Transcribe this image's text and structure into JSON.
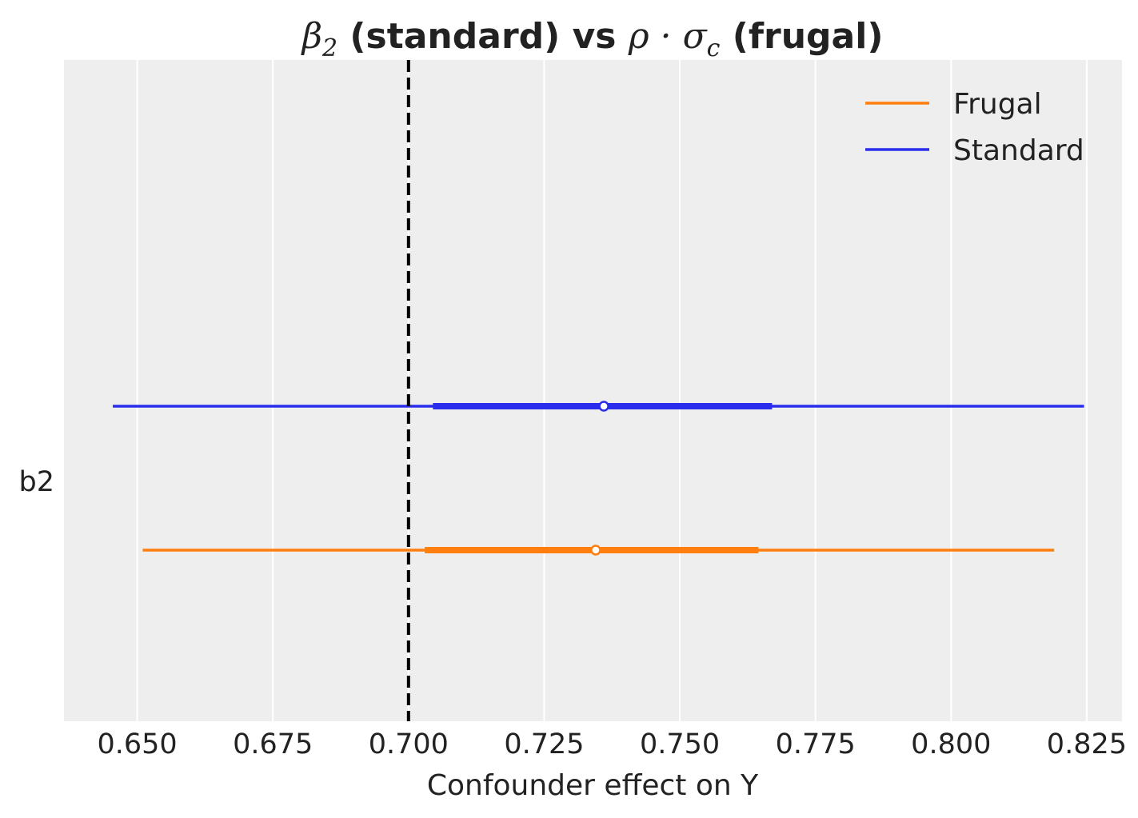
{
  "chart_data": {
    "type": "forest",
    "title": {
      "parts": [
        {
          "text": "β",
          "style": "math"
        },
        {
          "text": "2",
          "style": "math-sub"
        },
        {
          "text": " (standard) vs ",
          "style": "bold"
        },
        {
          "text": "ρ · σ",
          "style": "math"
        },
        {
          "text": "c",
          "style": "math-sub"
        },
        {
          "text": " (frugal)",
          "style": "bold"
        }
      ]
    },
    "xlabel": "Confounder effect on Y",
    "xlim": [
      0.6365,
      0.8315
    ],
    "xticks": [
      0.65,
      0.675,
      0.7,
      0.725,
      0.75,
      0.775,
      0.8,
      0.825
    ],
    "xtick_labels": [
      "0.650",
      "0.675",
      "0.700",
      "0.725",
      "0.750",
      "0.775",
      "0.800",
      "0.825"
    ],
    "ylabel_param": "b2",
    "grid": "x",
    "reference_line": {
      "x": 0.7,
      "style": "dashed",
      "color": "#000000"
    },
    "legend": {
      "position": "top-right",
      "entries": [
        {
          "name": "Frugal",
          "color": "#ff7f0e"
        },
        {
          "name": "Standard",
          "color": "#2a2eec"
        }
      ]
    },
    "series": [
      {
        "name": "Standard",
        "color": "#2a2eec",
        "hdi_outer": [
          0.6455,
          0.8245
        ],
        "hdi_inner": [
          0.7045,
          0.767
        ],
        "point": 0.736
      },
      {
        "name": "Frugal",
        "color": "#ff7f0e",
        "hdi_outer": [
          0.651,
          0.819
        ],
        "hdi_inner": [
          0.703,
          0.7645
        ],
        "point": 0.7345
      }
    ]
  }
}
